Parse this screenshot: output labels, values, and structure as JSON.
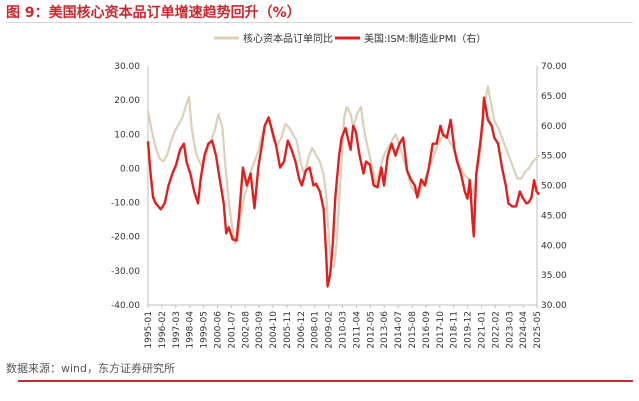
{
  "figure": {
    "title": "图 9：美国核心资本品订单增速趋势回升（%）",
    "source": "数据来源：wind，东方证券研究所"
  },
  "colors": {
    "accent": "#c9282d",
    "series1": "#ddd0b8",
    "series2": "#e0201f"
  },
  "chart_data": {
    "type": "line",
    "grid": false,
    "legend_position": "top",
    "left_axis": {
      "ylim": [
        -40,
        30
      ],
      "ticks": [
        "-40.00",
        "-30.00",
        "-20.00",
        "-10.00",
        "0.00",
        "10.00",
        "20.00",
        "30.00"
      ]
    },
    "right_axis": {
      "ylim": [
        30,
        70
      ],
      "ticks": [
        "30.00",
        "35.00",
        "40.00",
        "45.00",
        "50.00",
        "55.00",
        "60.00",
        "65.00",
        "70.00"
      ]
    },
    "x_ticks": [
      "1995-01",
      "1996-02",
      "1997-03",
      "1998-04",
      "1999-05",
      "2000-06",
      "2001-07",
      "2002-08",
      "2003-09",
      "2004-10",
      "2005-11",
      "2006-12",
      "2008-01",
      "2009-02",
      "2010-03",
      "2011-04",
      "2012-05",
      "2013-06",
      "2014-07",
      "2015-08",
      "2016-09",
      "2017-10",
      "2018-11",
      "2019-12",
      "2021-01",
      "2022-02",
      "2023-03",
      "2024-04",
      "2025-05"
    ],
    "series": [
      {
        "name": "核心资本品订单同比",
        "axis": "left",
        "points": [
          [
            1995.0,
            17
          ],
          [
            1995.3,
            11
          ],
          [
            1995.6,
            6
          ],
          [
            1995.9,
            3
          ],
          [
            1996.2,
            2
          ],
          [
            1996.5,
            4
          ],
          [
            1996.8,
            8
          ],
          [
            1997.1,
            11
          ],
          [
            1997.4,
            13
          ],
          [
            1997.7,
            15
          ],
          [
            1998.0,
            19
          ],
          [
            1998.2,
            21
          ],
          [
            1998.4,
            12
          ],
          [
            1998.7,
            5
          ],
          [
            1999.0,
            2
          ],
          [
            1999.3,
            0
          ],
          [
            1999.6,
            5
          ],
          [
            1999.9,
            8
          ],
          [
            2000.2,
            11
          ],
          [
            2000.5,
            16
          ],
          [
            2000.8,
            12
          ],
          [
            2001.0,
            2
          ],
          [
            2001.2,
            -6
          ],
          [
            2001.4,
            -13
          ],
          [
            2001.6,
            -18
          ],
          [
            2001.8,
            -22
          ],
          [
            2002.0,
            -21
          ],
          [
            2002.2,
            -15
          ],
          [
            2002.5,
            -8
          ],
          [
            2002.8,
            -5
          ],
          [
            2003.0,
            -1
          ],
          [
            2003.3,
            2
          ],
          [
            2003.6,
            5
          ],
          [
            2003.9,
            10
          ],
          [
            2004.2,
            13
          ],
          [
            2004.5,
            14
          ],
          [
            2004.8,
            8
          ],
          [
            2005.1,
            7
          ],
          [
            2005.4,
            9
          ],
          [
            2005.7,
            13
          ],
          [
            2006.0,
            12
          ],
          [
            2006.3,
            10
          ],
          [
            2006.6,
            8
          ],
          [
            2006.9,
            2
          ],
          [
            2007.2,
            -2
          ],
          [
            2007.5,
            3
          ],
          [
            2007.8,
            6
          ],
          [
            2008.1,
            4
          ],
          [
            2008.4,
            2
          ],
          [
            2008.7,
            -2
          ],
          [
            2008.9,
            -8
          ],
          [
            2009.1,
            -20
          ],
          [
            2009.3,
            -28
          ],
          [
            2009.5,
            -29
          ],
          [
            2009.7,
            -22
          ],
          [
            2009.9,
            -10
          ],
          [
            2010.1,
            3
          ],
          [
            2010.3,
            15
          ],
          [
            2010.5,
            18
          ],
          [
            2010.8,
            16
          ],
          [
            2011.0,
            12
          ],
          [
            2011.3,
            16
          ],
          [
            2011.6,
            18
          ],
          [
            2011.9,
            10
          ],
          [
            2012.2,
            5
          ],
          [
            2012.5,
            0
          ],
          [
            2012.8,
            -5
          ],
          [
            2013.1,
            0
          ],
          [
            2013.4,
            4
          ],
          [
            2013.7,
            6
          ],
          [
            2014.0,
            8
          ],
          [
            2014.3,
            10
          ],
          [
            2014.6,
            7
          ],
          [
            2014.9,
            3
          ],
          [
            2015.2,
            -1
          ],
          [
            2015.5,
            -5
          ],
          [
            2015.8,
            -7
          ],
          [
            2016.1,
            -8
          ],
          [
            2016.4,
            -5
          ],
          [
            2016.7,
            -2
          ],
          [
            2017.0,
            1
          ],
          [
            2017.3,
            4
          ],
          [
            2017.6,
            7
          ],
          [
            2017.9,
            9
          ],
          [
            2018.2,
            10
          ],
          [
            2018.5,
            8
          ],
          [
            2018.8,
            6
          ],
          [
            2019.1,
            3
          ],
          [
            2019.4,
            0
          ],
          [
            2019.7,
            -2
          ],
          [
            2020.0,
            -3
          ],
          [
            2020.3,
            -8
          ],
          [
            2020.6,
            -3
          ],
          [
            2020.9,
            5
          ],
          [
            2021.1,
            12
          ],
          [
            2021.3,
            20
          ],
          [
            2021.5,
            24
          ],
          [
            2021.8,
            18
          ],
          [
            2022.0,
            14
          ],
          [
            2022.3,
            12
          ],
          [
            2022.6,
            9
          ],
          [
            2022.9,
            6
          ],
          [
            2023.2,
            3
          ],
          [
            2023.5,
            0
          ],
          [
            2023.8,
            -3
          ],
          [
            2024.1,
            -3
          ],
          [
            2024.4,
            -1
          ],
          [
            2024.7,
            0
          ],
          [
            2025.0,
            2
          ],
          [
            2025.3,
            3
          ],
          [
            2025.5,
            4
          ]
        ]
      },
      {
        "name": "美国:ISM:制造业PMI（右）",
        "axis": "right",
        "points": [
          [
            1995.0,
            57.4
          ],
          [
            1995.2,
            52
          ],
          [
            1995.4,
            48
          ],
          [
            1995.6,
            47
          ],
          [
            1995.8,
            46.5
          ],
          [
            1996.0,
            46
          ],
          [
            1996.3,
            47
          ],
          [
            1996.6,
            50
          ],
          [
            1996.9,
            52
          ],
          [
            1997.2,
            53.5
          ],
          [
            1997.5,
            56
          ],
          [
            1997.8,
            57
          ],
          [
            1998.0,
            54
          ],
          [
            1998.3,
            52
          ],
          [
            1998.6,
            49
          ],
          [
            1998.9,
            47
          ],
          [
            1999.1,
            51
          ],
          [
            1999.4,
            55
          ],
          [
            1999.7,
            57
          ],
          [
            2000.0,
            57.5
          ],
          [
            2000.3,
            55
          ],
          [
            2000.6,
            51
          ],
          [
            2000.9,
            47
          ],
          [
            2001.1,
            42
          ],
          [
            2001.3,
            43
          ],
          [
            2001.6,
            41
          ],
          [
            2001.9,
            40.8
          ],
          [
            2002.1,
            45
          ],
          [
            2002.4,
            53
          ],
          [
            2002.7,
            50
          ],
          [
            2003.0,
            52
          ],
          [
            2003.3,
            46.2
          ],
          [
            2003.6,
            53
          ],
          [
            2003.9,
            57
          ],
          [
            2004.1,
            60
          ],
          [
            2004.4,
            61.4
          ],
          [
            2004.7,
            59
          ],
          [
            2005.0,
            56.5
          ],
          [
            2005.3,
            53
          ],
          [
            2005.6,
            54
          ],
          [
            2005.9,
            57.5
          ],
          [
            2006.2,
            56
          ],
          [
            2006.5,
            54
          ],
          [
            2006.8,
            51
          ],
          [
            2007.0,
            50
          ],
          [
            2007.3,
            52.5
          ],
          [
            2007.6,
            53
          ],
          [
            2007.9,
            50
          ],
          [
            2008.1,
            50.3
          ],
          [
            2008.4,
            49
          ],
          [
            2008.7,
            46
          ],
          [
            2008.9,
            38
          ],
          [
            2009.0,
            33.1
          ],
          [
            2009.2,
            35
          ],
          [
            2009.4,
            40
          ],
          [
            2009.6,
            48
          ],
          [
            2009.9,
            55
          ],
          [
            2010.1,
            58
          ],
          [
            2010.4,
            59.6
          ],
          [
            2010.8,
            56
          ],
          [
            2011.0,
            60
          ],
          [
            2011.2,
            59
          ],
          [
            2011.5,
            55
          ],
          [
            2011.8,
            52
          ],
          [
            2012.0,
            54
          ],
          [
            2012.3,
            53.5
          ],
          [
            2012.6,
            50
          ],
          [
            2012.9,
            49.7
          ],
          [
            2013.2,
            53
          ],
          [
            2013.4,
            50
          ],
          [
            2013.7,
            55
          ],
          [
            2014.0,
            57
          ],
          [
            2014.3,
            55
          ],
          [
            2014.6,
            57
          ],
          [
            2014.9,
            58
          ],
          [
            2015.2,
            52.5
          ],
          [
            2015.5,
            51
          ],
          [
            2015.8,
            50
          ],
          [
            2016.0,
            48
          ],
          [
            2016.3,
            51
          ],
          [
            2016.6,
            50
          ],
          [
            2016.9,
            53
          ],
          [
            2017.2,
            57
          ],
          [
            2017.5,
            57
          ],
          [
            2017.8,
            60
          ],
          [
            2018.0,
            58.5
          ],
          [
            2018.3,
            58
          ],
          [
            2018.6,
            61
          ],
          [
            2018.9,
            56
          ],
          [
            2019.1,
            54
          ],
          [
            2019.4,
            52
          ],
          [
            2019.7,
            49
          ],
          [
            2019.9,
            47.8
          ],
          [
            2020.1,
            50.9
          ],
          [
            2020.3,
            44
          ],
          [
            2020.4,
            41.5
          ],
          [
            2020.6,
            52
          ],
          [
            2020.9,
            57
          ],
          [
            2021.1,
            61
          ],
          [
            2021.2,
            64.7
          ],
          [
            2021.5,
            61
          ],
          [
            2021.8,
            60
          ],
          [
            2022.0,
            58
          ],
          [
            2022.3,
            57
          ],
          [
            2022.6,
            53
          ],
          [
            2022.9,
            50
          ],
          [
            2023.1,
            47
          ],
          [
            2023.4,
            46.5
          ],
          [
            2023.7,
            46.5
          ],
          [
            2024.0,
            49
          ],
          [
            2024.2,
            48
          ],
          [
            2024.5,
            47
          ],
          [
            2024.7,
            47.2
          ],
          [
            2024.9,
            48
          ],
          [
            2025.1,
            50.9
          ],
          [
            2025.3,
            49
          ],
          [
            2025.5,
            48.5
          ]
        ]
      }
    ]
  }
}
